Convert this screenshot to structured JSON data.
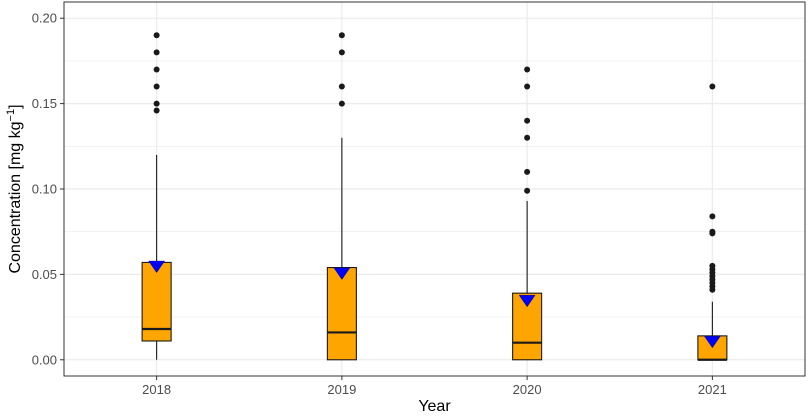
{
  "chart_data": {
    "type": "box",
    "xlabel": "Year",
    "ylabel": "Concentration [mg kg",
    "ylabel_sup": "−1",
    "ylabel_suffix": "]",
    "ylim": [
      -0.0095,
      0.2095
    ],
    "yticks": [
      "0.00",
      "0.05",
      "0.10",
      "0.15",
      "0.20"
    ],
    "categories": [
      "2018",
      "2019",
      "2020",
      "2021"
    ],
    "colors": {
      "box_fill": "#FFA500",
      "box_stroke": "#1a1a1a",
      "mean_marker": "#0000FF",
      "outlier": "#1a1a1a",
      "grid": "#ebebeb",
      "panel_border": "#333333"
    },
    "grid": true,
    "boxes": [
      {
        "year": "2018",
        "min": 0.0,
        "q1": 0.011,
        "median": 0.018,
        "q3": 0.057,
        "whisker_high": 0.12,
        "mean": 0.055,
        "outliers": [
          0.146,
          0.15,
          0.16,
          0.17,
          0.18,
          0.19
        ]
      },
      {
        "year": "2019",
        "min": 0.0,
        "q1": 0.0,
        "median": 0.016,
        "q3": 0.054,
        "whisker_high": 0.13,
        "mean": 0.051,
        "outliers": [
          0.15,
          0.16,
          0.18,
          0.19
        ]
      },
      {
        "year": "2020",
        "min": 0.0,
        "q1": 0.0,
        "median": 0.01,
        "q3": 0.039,
        "whisker_high": 0.093,
        "mean": 0.035,
        "outliers": [
          0.099,
          0.11,
          0.13,
          0.14,
          0.16,
          0.17
        ]
      },
      {
        "year": "2021",
        "min": 0.0,
        "q1": 0.0,
        "median": 0.0,
        "q3": 0.014,
        "whisker_high": 0.034,
        "mean": 0.011,
        "outliers": [
          0.041,
          0.043,
          0.045,
          0.047,
          0.049,
          0.051,
          0.053,
          0.055,
          0.074,
          0.075,
          0.084,
          0.16
        ]
      }
    ]
  }
}
